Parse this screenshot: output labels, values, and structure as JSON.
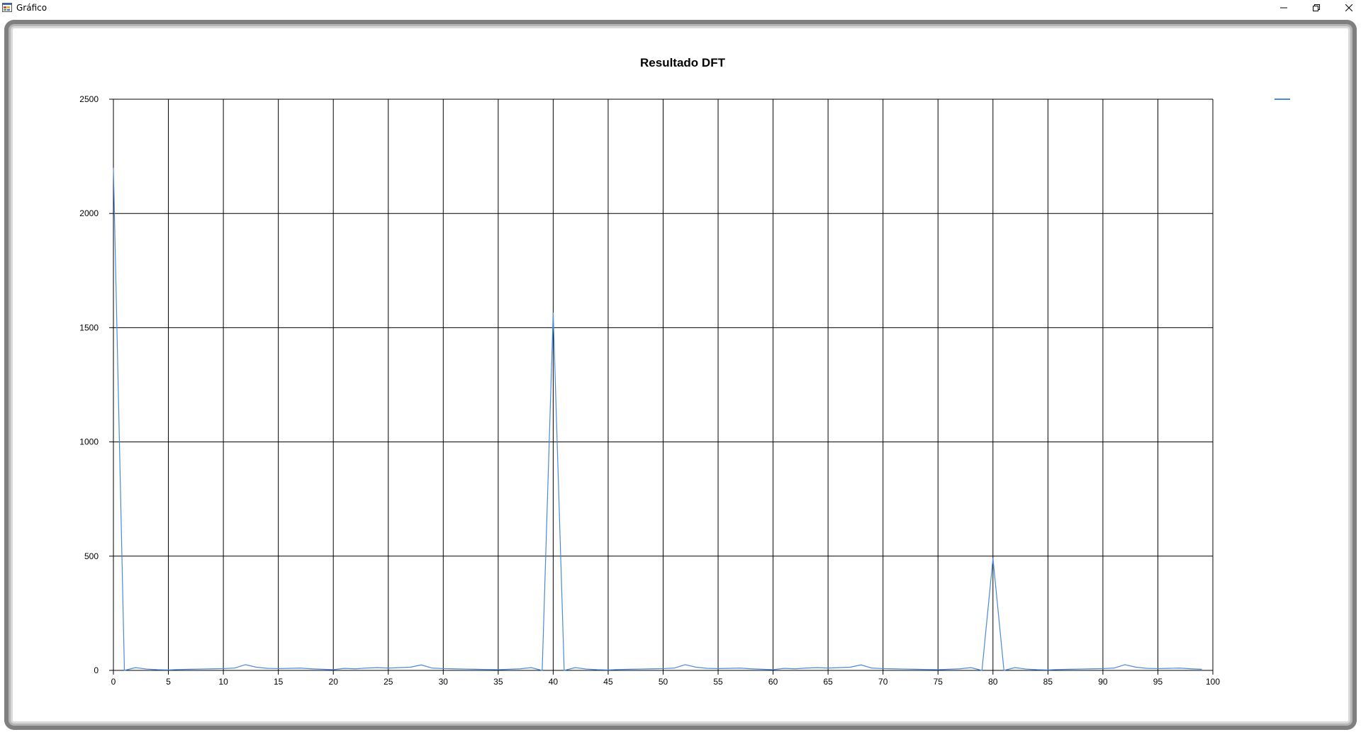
{
  "window": {
    "title": "Gráfico",
    "icon": "form-app-icon",
    "controls": {
      "minimize_glyph": "—",
      "restore_glyph": "❐",
      "close_glyph": "✕"
    }
  },
  "colors": {
    "series": "#4a89dc",
    "grid": "#000000",
    "legend": "#4a89dc"
  },
  "chart_data": {
    "type": "line",
    "title": "Resultado DFT",
    "xlabel": "",
    "ylabel": "",
    "xlim": [
      0,
      100
    ],
    "ylim": [
      0,
      2500
    ],
    "xticks": [
      0,
      5,
      10,
      15,
      20,
      25,
      30,
      35,
      40,
      45,
      50,
      55,
      60,
      65,
      70,
      75,
      80,
      85,
      90,
      95,
      100
    ],
    "yticks": [
      0,
      500,
      1000,
      1500,
      2000,
      2500
    ],
    "grid": true,
    "legend": {
      "position": "top-right",
      "entries": [
        ""
      ]
    },
    "series": [
      {
        "name": "",
        "x": [
          0,
          1,
          2,
          3,
          4,
          5,
          6,
          7,
          8,
          9,
          10,
          11,
          12,
          13,
          14,
          15,
          16,
          17,
          18,
          19,
          20,
          21,
          22,
          23,
          24,
          25,
          26,
          27,
          28,
          29,
          30,
          31,
          32,
          33,
          34,
          35,
          36,
          37,
          38,
          39,
          40,
          41,
          42,
          43,
          44,
          45,
          46,
          47,
          48,
          49,
          50,
          51,
          52,
          53,
          54,
          55,
          56,
          57,
          58,
          59,
          60,
          61,
          62,
          63,
          64,
          65,
          66,
          67,
          68,
          69,
          70,
          71,
          72,
          73,
          74,
          75,
          76,
          77,
          78,
          79,
          80,
          81,
          82,
          83,
          84,
          85,
          86,
          87,
          88,
          89,
          90,
          91,
          92,
          93,
          94,
          95,
          96,
          97,
          98,
          99
        ],
        "values": [
          2200,
          0,
          12,
          6,
          3,
          2,
          4,
          5,
          6,
          7,
          8,
          10,
          25,
          14,
          9,
          8,
          9,
          10,
          7,
          5,
          3,
          9,
          7,
          10,
          12,
          10,
          12,
          14,
          24,
          10,
          8,
          7,
          6,
          5,
          4,
          3,
          5,
          7,
          12,
          0,
          1565,
          0,
          12,
          6,
          3,
          2,
          4,
          5,
          6,
          7,
          8,
          10,
          25,
          14,
          9,
          8,
          9,
          10,
          7,
          5,
          3,
          9,
          7,
          10,
          12,
          10,
          12,
          14,
          24,
          10,
          8,
          7,
          6,
          5,
          4,
          3,
          5,
          7,
          12,
          0,
          490,
          0,
          12,
          6,
          3,
          2,
          4,
          5,
          6,
          7,
          8,
          10,
          25,
          14,
          9,
          8,
          9,
          10,
          7,
          5
        ]
      }
    ]
  }
}
